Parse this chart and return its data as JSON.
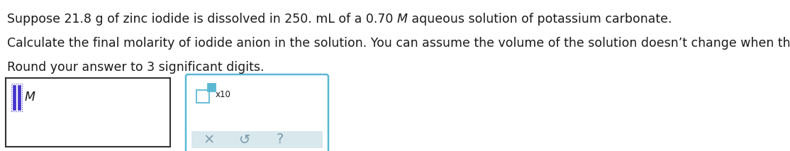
{
  "line1_pre": "Suppose 21.8 g of zinc iodide is dissolved in 250. mL of a 0.70 ",
  "line1_M": "M",
  "line1_post": " aqueous solution of potassium carbonate.",
  "line2": "Calculate the final molarity of iodide anion in the solution. You can assume the volume of the solution doesn’t change when the zinc iodide is dissolved in it.",
  "line3": "Round your answer to 3 significant digits.",
  "input_box_label": "M",
  "bg_color": "#ffffff",
  "text_color": "#1a1a1a",
  "box_border_color": "#333333",
  "popup_border_color": "#5bb8d4",
  "popup_bg_color": "#ffffff",
  "popup_footer_bg": "#d8e8ed",
  "x10_label": "x10",
  "btn_x": "×",
  "btn_undo": "↺",
  "btn_help": "?",
  "btn_color": "#7a9aaa",
  "input_symbol_color": "#4433cc",
  "font_size_main": 12.5,
  "font_size_btn": 14,
  "font_size_small": 8.5
}
